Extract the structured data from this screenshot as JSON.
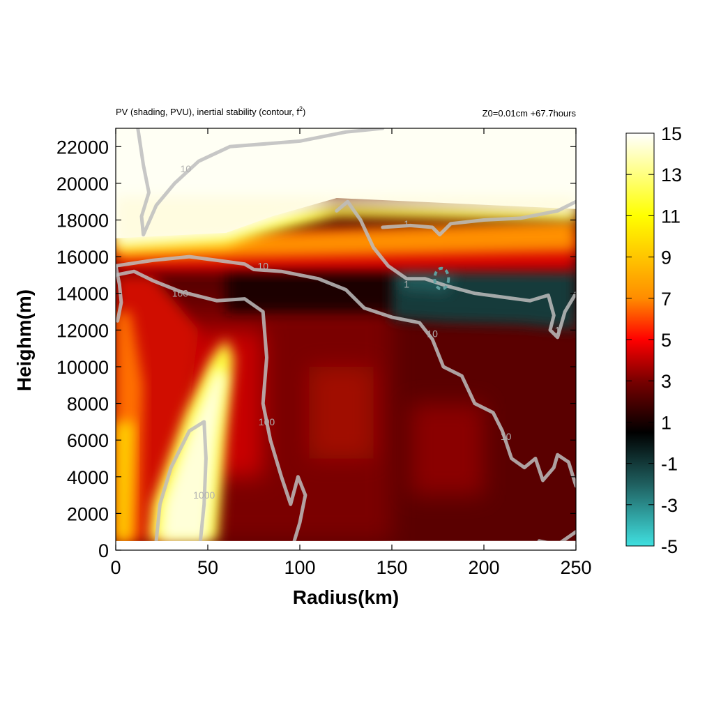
{
  "chart_data": {
    "type": "heatmap",
    "title_left": "PV (shading, PVU), inertial stability (contour, f",
    "title_left_sup": "2",
    "title_left_end": ")",
    "title_right": "Z0=0.01cm  +67.7hours",
    "xlabel": "Radius(km)",
    "ylabel": "Heighm(m)",
    "xlim": [
      0,
      250
    ],
    "ylim": [
      0,
      23000
    ],
    "data_bottom": 500,
    "x_ticks": [
      0,
      50,
      100,
      150,
      200,
      250
    ],
    "y_ticks": [
      0,
      2000,
      4000,
      6000,
      8000,
      10000,
      12000,
      14000,
      16000,
      18000,
      20000,
      22000
    ],
    "colorbar": {
      "min": -5,
      "max": 15,
      "ticks": [
        15,
        13,
        11,
        9,
        7,
        5,
        3,
        1,
        -1,
        -3,
        -5
      ],
      "colors": [
        "#40e0e0",
        "#1f5f5f",
        "#000000",
        "#7a0000",
        "#ff0000",
        "#ff8c00",
        "#ffff00",
        "#ffffff"
      ],
      "color_stops": [
        -5,
        -2,
        0.5,
        3,
        5,
        7,
        11,
        15
      ]
    },
    "shading_description": "PV field: high (15) stratosphere above ~16500 m; near-zero to negative band (-1 to -3) near 14000-15500 m for 150-250 km; high core (>13) tilted band from 20-60 km below 11000 m; moderate (2-5) elsewhere",
    "contours": [
      {
        "level": "1",
        "label_positions": [
          [
            158,
            17800
          ],
          [
            158,
            14500
          ],
          [
            240,
            12000
          ]
        ]
      },
      {
        "level": "10",
        "label_positions": [
          [
            38,
            20800
          ],
          [
            80,
            15500
          ],
          [
            172,
            11800
          ],
          [
            212,
            6200
          ]
        ]
      },
      {
        "level": "100",
        "label_positions": [
          [
            35,
            14000
          ],
          [
            82,
            7000
          ]
        ]
      },
      {
        "level": "1000",
        "label_positions": [
          [
            48,
            3000
          ]
        ]
      }
    ],
    "contour_labels": [
      "1",
      "10",
      "100",
      "1000"
    ]
  },
  "contour_lines": {
    "level_1000": [
      [
        22,
        500
      ],
      [
        24,
        2500
      ],
      [
        30,
        4500
      ],
      [
        40,
        6500
      ],
      [
        48,
        7000
      ],
      [
        49,
        5000
      ],
      [
        48,
        2500
      ],
      [
        46,
        500
      ]
    ],
    "level_100_inner": [
      [
        0,
        15000
      ],
      [
        10,
        15200
      ],
      [
        20,
        14700
      ],
      [
        35,
        14100
      ],
      [
        55,
        13600
      ],
      [
        70,
        13700
      ],
      [
        80,
        13000
      ],
      [
        82,
        10500
      ],
      [
        80,
        8000
      ],
      [
        84,
        6000
      ],
      [
        90,
        4000
      ],
      [
        95,
        2500
      ],
      [
        99,
        4000
      ],
      [
        103,
        3000
      ],
      [
        100,
        1500
      ],
      [
        97,
        500
      ]
    ],
    "level_100_left": [
      [
        0,
        15500
      ],
      [
        2,
        14500
      ],
      [
        3,
        13500
      ],
      [
        1,
        12500
      ]
    ],
    "level_10_a": [
      [
        12,
        23000
      ],
      [
        15,
        21000
      ],
      [
        18,
        19500
      ],
      [
        14,
        18200
      ],
      [
        15,
        17200
      ],
      [
        22,
        18800
      ],
      [
        32,
        20000
      ],
      [
        45,
        21200
      ],
      [
        62,
        22000
      ],
      [
        100,
        22300
      ],
      [
        125,
        22800
      ],
      [
        145,
        23000
      ]
    ],
    "level_10_b": [
      [
        0,
        15500
      ],
      [
        20,
        15800
      ],
      [
        40,
        16000
      ],
      [
        55,
        15800
      ],
      [
        70,
        15600
      ],
      [
        75,
        15300
      ],
      [
        90,
        15200
      ],
      [
        110,
        14800
      ],
      [
        125,
        14200
      ],
      [
        135,
        13200
      ],
      [
        150,
        12700
      ],
      [
        165,
        12400
      ],
      [
        172,
        11500
      ],
      [
        178,
        10000
      ],
      [
        188,
        9500
      ],
      [
        195,
        8000
      ],
      [
        205,
        7500
      ],
      [
        210,
        6500
      ],
      [
        215,
        5000
      ],
      [
        222,
        4500
      ],
      [
        228,
        5000
      ],
      [
        232,
        3800
      ],
      [
        238,
        4500
      ],
      [
        240,
        5200
      ],
      [
        246,
        4800
      ],
      [
        250,
        3500
      ]
    ],
    "level_10_bottom": [
      [
        230,
        500
      ],
      [
        240,
        300
      ],
      [
        250,
        1000
      ]
    ],
    "level_1_a": [
      [
        120,
        18500
      ],
      [
        126,
        19000
      ],
      [
        133,
        18000
      ],
      [
        140,
        16500
      ],
      [
        148,
        15500
      ],
      [
        158,
        14800
      ],
      [
        168,
        14800
      ],
      [
        180,
        14400
      ],
      [
        195,
        14000
      ],
      [
        210,
        13800
      ],
      [
        225,
        13600
      ],
      [
        235,
        13900
      ],
      [
        238,
        12800
      ],
      [
        236,
        12000
      ],
      [
        240,
        11600
      ],
      [
        244,
        13000
      ],
      [
        250,
        14000
      ]
    ],
    "level_1_b": [
      [
        145,
        17600
      ],
      [
        160,
        17700
      ],
      [
        172,
        17600
      ],
      [
        176,
        17200
      ],
      [
        182,
        17800
      ],
      [
        200,
        18000
      ],
      [
        220,
        18100
      ],
      [
        240,
        18500
      ],
      [
        250,
        19000
      ]
    ]
  }
}
